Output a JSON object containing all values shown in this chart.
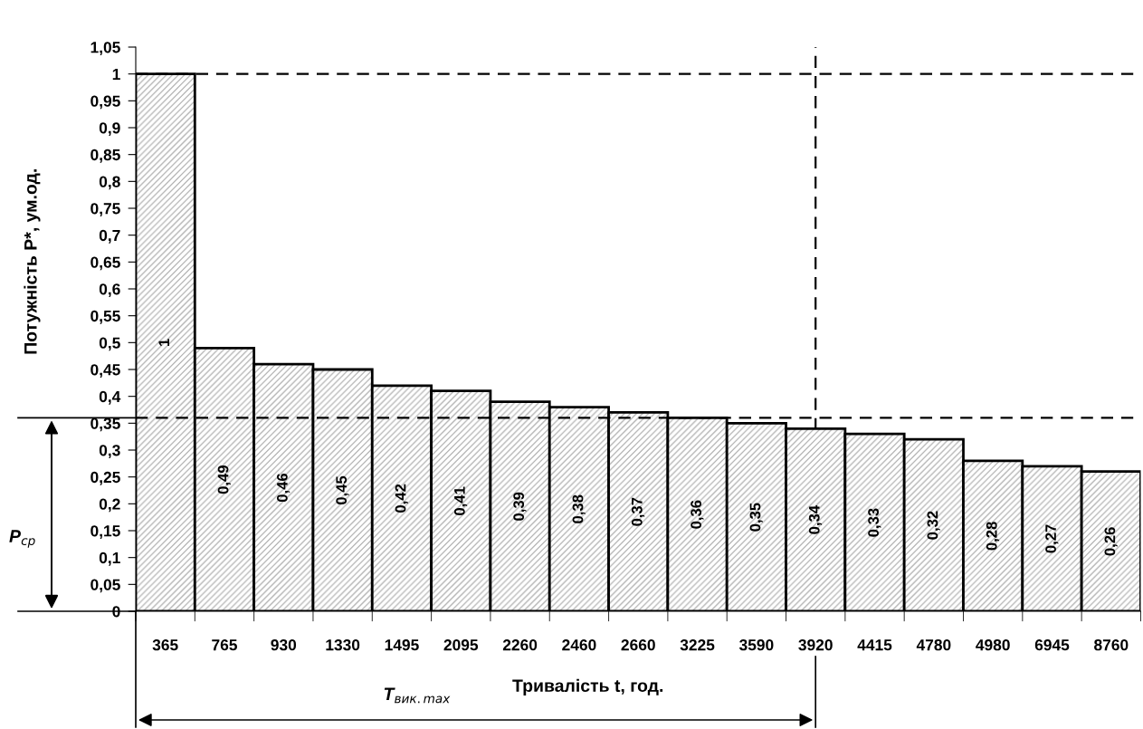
{
  "chart_data": {
    "type": "bar",
    "xlabel": "Тривалість t, год.",
    "ylabel": "Потужність P*, ум.од.",
    "categories": [
      "365",
      "765",
      "930",
      "1330",
      "1495",
      "2095",
      "2260",
      "2460",
      "2660",
      "3225",
      "3590",
      "3920",
      "4415",
      "4780",
      "4980",
      "6945",
      "8760"
    ],
    "series": [
      {
        "values": [
          1,
          0.49,
          0.46,
          0.45,
          0.42,
          0.41,
          0.39,
          0.38,
          0.37,
          0.36,
          0.35,
          0.34,
          0.33,
          0.32,
          0.28,
          0.27,
          0.26
        ],
        "value_labels": [
          "1",
          "0,49",
          "0,46",
          "0,45",
          "0,42",
          "0,41",
          "0,39",
          "0,38",
          "0,37",
          "0,36",
          "0,35",
          "0,34",
          "0,33",
          "0,32",
          "0,28",
          "0,27",
          "0,26"
        ]
      }
    ],
    "ylim": [
      0,
      1.05
    ],
    "yticks": [
      0,
      {
        "value": 0.05,
        "label": "0,05"
      },
      {
        "value": 0.1,
        "label": "0,1"
      },
      {
        "value": 0.15,
        "label": "0,15"
      },
      {
        "value": 0.2,
        "label": "0,2"
      },
      {
        "value": 0.25,
        "label": "0,25"
      },
      {
        "value": 0.3,
        "label": "0,3"
      },
      {
        "value": 0.35,
        "label": "0,35"
      },
      {
        "value": 0.4,
        "label": "0,4"
      },
      {
        "value": 0.45,
        "label": "0,45"
      },
      {
        "value": 0.5,
        "label": "0,5"
      },
      {
        "value": 0.55,
        "label": "0,55"
      },
      {
        "value": 0.6,
        "label": "0,6"
      },
      {
        "value": 0.65,
        "label": "0,65"
      },
      {
        "value": 0.7,
        "label": "0,7"
      },
      {
        "value": 0.75,
        "label": "0,75"
      },
      {
        "value": 0.8,
        "label": "0,8"
      },
      {
        "value": 0.85,
        "label": "0,85"
      },
      {
        "value": 0.9,
        "label": "0,9"
      },
      {
        "value": 0.95,
        "label": "0,95"
      },
      1,
      {
        "value": 1.05,
        "label": "1,05"
      }
    ],
    "ref_lines": [
      {
        "axis": "y",
        "value": 0.36,
        "line_style": "dashed",
        "color": "#000000"
      },
      {
        "axis": "y",
        "value": 1,
        "line_style": "dashed",
        "color": "#000000"
      },
      {
        "axis": "x",
        "value": "3920",
        "line_style": "dashed",
        "color": "#000000"
      }
    ],
    "annotations": [
      "P$_{ср}$",
      "T$_{вик.max}$"
    ],
    "grid": false,
    "legend": false
  }
}
